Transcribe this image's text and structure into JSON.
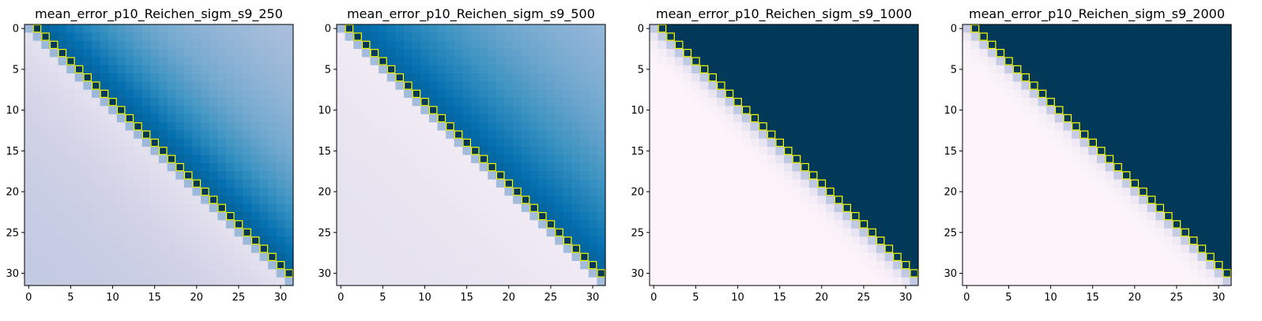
{
  "chart_data": [
    {
      "type": "heatmap",
      "title": "mean_error_p10_Reichen_sigm_s9_250",
      "size": 32,
      "ticks": [
        0,
        5,
        10,
        15,
        20,
        25,
        30
      ],
      "cmap": "PuBu",
      "highlight": "yellow squares along the superdiagonal (i, i+1)",
      "upper": {
        "near": 0.82,
        "far": 0.3,
        "decay": 0.07
      },
      "lower": {
        "near": 0.16,
        "far": 0.3,
        "decay": 0.09
      },
      "first_diagonal": 0.4
    },
    {
      "type": "heatmap",
      "title": "mean_error_p10_Reichen_sigm_s9_500",
      "size": 32,
      "ticks": [
        0,
        5,
        10,
        15,
        20,
        25,
        30
      ],
      "cmap": "PuBu",
      "highlight": "yellow squares along the superdiagonal (i, i+1)",
      "upper": {
        "near": 0.8,
        "far": 0.28,
        "decay": 0.045
      },
      "lower": {
        "near": 0.1,
        "far": 0.16,
        "decay": 0.1
      },
      "first_diagonal": 0.38
    },
    {
      "type": "heatmap",
      "title": "mean_error_p10_Reichen_sigm_s9_1000",
      "size": 32,
      "ticks": [
        0,
        5,
        10,
        15,
        20,
        25,
        30
      ],
      "cmap": "PuBu",
      "highlight": "yellow squares along the superdiagonal (i, i+1)",
      "upper": {
        "near": 1.0,
        "far": 1.0,
        "decay": 0.0
      },
      "lower": {
        "near": 0.14,
        "far": 0.02,
        "decay": 0.9
      },
      "first_diagonal": 0.3
    },
    {
      "type": "heatmap",
      "title": "mean_error_p10_Reichen_sigm_s9_2000",
      "size": 32,
      "ticks": [
        0,
        5,
        10,
        15,
        20,
        25,
        30
      ],
      "cmap": "PuBu",
      "highlight": "yellow squares along the superdiagonal (i, i+1)",
      "upper": {
        "near": 1.0,
        "far": 1.0,
        "decay": 0.0
      },
      "lower": {
        "near": 0.1,
        "far": 0.02,
        "decay": 0.9
      },
      "first_diagonal": 0.28
    }
  ]
}
